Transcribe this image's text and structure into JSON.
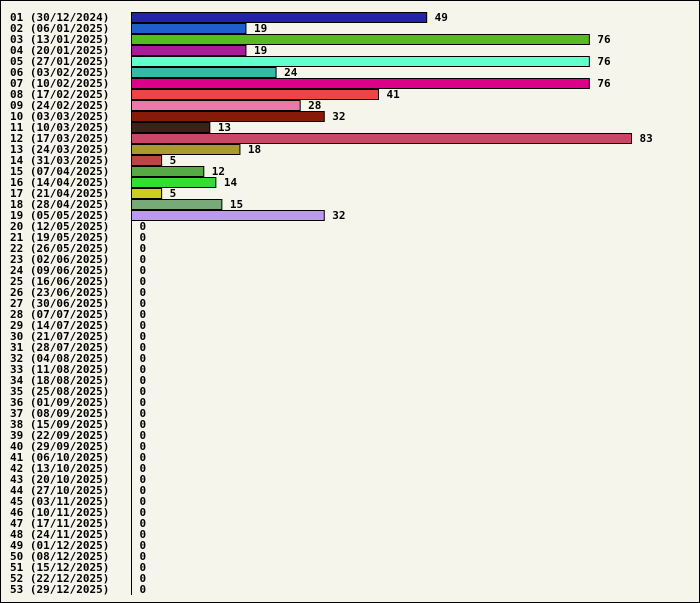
{
  "chart_data": {
    "type": "bar",
    "orientation": "horizontal",
    "title": "",
    "xlabel": "",
    "ylabel": "",
    "grid": false,
    "legend": "none",
    "categories": [
      "01 (30/12/2024)",
      "02 (06/01/2025)",
      "03 (13/01/2025)",
      "04 (20/01/2025)",
      "05 (27/01/2025)",
      "06 (03/02/2025)",
      "07 (10/02/2025)",
      "08 (17/02/2025)",
      "09 (24/02/2025)",
      "10 (03/03/2025)",
      "11 (10/03/2025)",
      "12 (17/03/2025)",
      "13 (24/03/2025)",
      "14 (31/03/2025)",
      "15 (07/04/2025)",
      "16 (14/04/2025)",
      "17 (21/04/2025)",
      "18 (28/04/2025)",
      "19 (05/05/2025)",
      "20 (12/05/2025)",
      "21 (19/05/2025)",
      "22 (26/05/2025)",
      "23 (02/06/2025)",
      "24 (09/06/2025)",
      "25 (16/06/2025)",
      "26 (23/06/2025)",
      "27 (30/06/2025)",
      "28 (07/07/2025)",
      "29 (14/07/2025)",
      "30 (21/07/2025)",
      "31 (28/07/2025)",
      "32 (04/08/2025)",
      "33 (11/08/2025)",
      "34 (18/08/2025)",
      "35 (25/08/2025)",
      "36 (01/09/2025)",
      "37 (08/09/2025)",
      "38 (15/09/2025)",
      "39 (22/09/2025)",
      "40 (29/09/2025)",
      "41 (06/10/2025)",
      "42 (13/10/2025)",
      "43 (20/10/2025)",
      "44 (27/10/2025)",
      "45 (03/11/2025)",
      "46 (10/11/2025)",
      "47 (17/11/2025)",
      "48 (24/11/2025)",
      "49 (01/12/2025)",
      "50 (08/12/2025)",
      "51 (15/12/2025)",
      "52 (22/12/2025)",
      "53 (29/12/2025)"
    ],
    "values": [
      49,
      19,
      76,
      19,
      76,
      24,
      76,
      41,
      28,
      32,
      13,
      83,
      18,
      5,
      12,
      14,
      5,
      15,
      32,
      0,
      0,
      0,
      0,
      0,
      0,
      0,
      0,
      0,
      0,
      0,
      0,
      0,
      0,
      0,
      0,
      0,
      0,
      0,
      0,
      0,
      0,
      0,
      0,
      0,
      0,
      0,
      0,
      0,
      0,
      0,
      0,
      0,
      0
    ],
    "colors": [
      "#2222aa",
      "#1f5fcc",
      "#55bb22",
      "#aa1a99",
      "#66ffcc",
      "#33bbaa",
      "#dd0088",
      "#ee4444",
      "#ee77aa",
      "#881a0a",
      "#3a2218",
      "#cc4466",
      "#aa9933",
      "#bb4444",
      "#55aa44",
      "#33dd33",
      "#cccc22",
      "#77aa77",
      "#bb99ee"
    ],
    "xlim": [
      0,
      83
    ]
  }
}
